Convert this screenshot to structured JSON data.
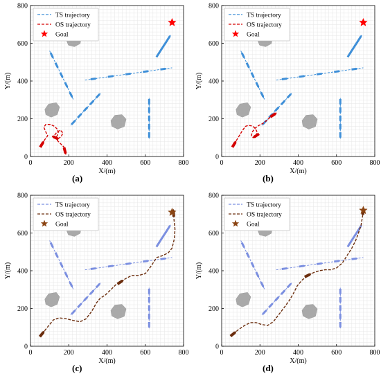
{
  "figure": {
    "captions": [
      "(a)",
      "(b)",
      "(c)",
      "(d)"
    ]
  },
  "chart_data": [
    {
      "type": "line",
      "panel": "(a)",
      "xlabel": "X/(m)",
      "ylabel": "Y/(m)",
      "xlim": [
        0,
        800
      ],
      "ylim": [
        0,
        800
      ],
      "xticks": [
        "0",
        "200",
        "400",
        "600",
        "800"
      ],
      "yticks": [
        "0",
        "200",
        "400",
        "600",
        "800"
      ],
      "grid": true,
      "legend_position": "top-left",
      "legend": [
        "TS  trajectory",
        "OS  trajectory",
        "Goal"
      ],
      "goal": {
        "x": 740,
        "y": 710,
        "color": "#ff0000"
      },
      "ts_color": "#3e8fd8",
      "os_color": "#d40000",
      "obstacles": [
        [
          [
            190,
            610
          ],
          [
            205,
            640
          ],
          [
            245,
            648
          ],
          [
            265,
            630
          ],
          [
            260,
            598
          ],
          [
            230,
            582
          ],
          [
            198,
            590
          ]
        ],
        [
          [
            75,
            250
          ],
          [
            95,
            278
          ],
          [
            135,
            285
          ],
          [
            152,
            262
          ],
          [
            140,
            222
          ],
          [
            108,
            208
          ],
          [
            80,
            222
          ]
        ],
        [
          [
            420,
            190
          ],
          [
            440,
            218
          ],
          [
            478,
            222
          ],
          [
            500,
            198
          ],
          [
            490,
            158
          ],
          [
            455,
            145
          ],
          [
            425,
            160
          ]
        ]
      ],
      "ts_lines": [
        {
          "x": [
            100,
            225
          ],
          "y": [
            560,
            300
          ]
        },
        {
          "x": [
            285,
            740
          ],
          "y": [
            405,
            470
          ]
        },
        {
          "x": [
            210,
            370
          ],
          "y": [
            165,
            340
          ]
        },
        {
          "x": [
            620,
            620
          ],
          "y": [
            310,
            90
          ]
        },
        {
          "x": [
            660,
            730
          ],
          "y": [
            530,
            640
          ]
        }
      ],
      "series": [
        {
          "name": "OS  trajectory",
          "color": "#d40000",
          "x": [
            60,
            75,
            90,
            80,
            70,
            80,
            105,
            125,
            140,
            145,
            140,
            130,
            120,
            135,
            155,
            170,
            160,
            145,
            140,
            155,
            175,
            180
          ],
          "y": [
            65,
            90,
            110,
            130,
            155,
            170,
            170,
            160,
            145,
            128,
            110,
            100,
            105,
            125,
            140,
            125,
            105,
            95,
            85,
            70,
            50,
            30
          ]
        }
      ]
    },
    {
      "type": "line",
      "panel": "(b)",
      "xlabel": "X/(m)",
      "ylabel": "Y/(m)",
      "xlim": [
        0,
        800
      ],
      "ylim": [
        0,
        800
      ],
      "xticks": [
        "0",
        "200",
        "400",
        "600",
        "800"
      ],
      "yticks": [
        "0",
        "200",
        "400",
        "600",
        "800"
      ],
      "grid": true,
      "legend_position": "top-left",
      "legend": [
        "TS  trajectory",
        "OS  trajectory",
        "Goal"
      ],
      "goal": {
        "x": 740,
        "y": 710,
        "color": "#ff0000"
      },
      "ts_color": "#3e8fd8",
      "os_color": "#d40000",
      "obstacles": [
        [
          [
            190,
            610
          ],
          [
            205,
            640
          ],
          [
            245,
            648
          ],
          [
            265,
            630
          ],
          [
            260,
            598
          ],
          [
            230,
            582
          ],
          [
            198,
            590
          ]
        ],
        [
          [
            75,
            250
          ],
          [
            95,
            278
          ],
          [
            135,
            285
          ],
          [
            152,
            262
          ],
          [
            140,
            222
          ],
          [
            108,
            208
          ],
          [
            80,
            222
          ]
        ],
        [
          [
            420,
            190
          ],
          [
            440,
            218
          ],
          [
            478,
            222
          ],
          [
            500,
            198
          ],
          [
            490,
            158
          ],
          [
            455,
            145
          ],
          [
            425,
            160
          ]
        ]
      ],
      "ts_lines": [
        {
          "x": [
            100,
            225
          ],
          "y": [
            560,
            300
          ]
        },
        {
          "x": [
            285,
            740
          ],
          "y": [
            405,
            470
          ]
        },
        {
          "x": [
            210,
            370
          ],
          "y": [
            165,
            340
          ]
        },
        {
          "x": [
            620,
            620
          ],
          "y": [
            310,
            90
          ]
        },
        {
          "x": [
            660,
            730
          ],
          "y": [
            530,
            640
          ]
        }
      ],
      "series": [
        {
          "name": "OS  trajectory",
          "color": "#d40000",
          "x": [
            65,
            80,
            95,
            110,
            125,
            140,
            160,
            175,
            185,
            180,
            165,
            155,
            160,
            175,
            195,
            215,
            235,
            255,
            270
          ],
          "y": [
            65,
            90,
            115,
            140,
            160,
            165,
            162,
            150,
            130,
            110,
            100,
            110,
            130,
            150,
            165,
            175,
            190,
            210,
            220
          ]
        }
      ]
    },
    {
      "type": "line",
      "panel": "(c)",
      "xlabel": "X/(m)",
      "ylabel": "Y/(m)",
      "xlim": [
        0,
        800
      ],
      "ylim": [
        0,
        800
      ],
      "xticks": [
        "0",
        "200",
        "400",
        "600",
        "800"
      ],
      "yticks": [
        "0",
        "200",
        "400",
        "600",
        "800"
      ],
      "grid": true,
      "legend_position": "top-left",
      "legend": [
        "TS  trajectory",
        "OS  trajectory",
        "Goal"
      ],
      "goal": {
        "x": 740,
        "y": 710,
        "color": "#8b4513"
      },
      "ts_color": "#7b8fe0",
      "os_color": "#6b2d0d",
      "obstacles": [
        [
          [
            190,
            610
          ],
          [
            205,
            640
          ],
          [
            245,
            648
          ],
          [
            265,
            630
          ],
          [
            260,
            598
          ],
          [
            230,
            582
          ],
          [
            198,
            590
          ]
        ],
        [
          [
            75,
            250
          ],
          [
            95,
            278
          ],
          [
            135,
            285
          ],
          [
            152,
            262
          ],
          [
            140,
            222
          ],
          [
            108,
            208
          ],
          [
            80,
            222
          ]
        ],
        [
          [
            420,
            190
          ],
          [
            440,
            218
          ],
          [
            478,
            222
          ],
          [
            500,
            198
          ],
          [
            490,
            158
          ],
          [
            455,
            145
          ],
          [
            425,
            160
          ]
        ]
      ],
      "ts_lines": [
        {
          "x": [
            100,
            225
          ],
          "y": [
            560,
            300
          ]
        },
        {
          "x": [
            285,
            740
          ],
          "y": [
            405,
            470
          ]
        },
        {
          "x": [
            210,
            370
          ],
          "y": [
            165,
            340
          ]
        },
        {
          "x": [
            620,
            620
          ],
          "y": [
            310,
            90
          ]
        },
        {
          "x": [
            660,
            730
          ],
          "y": [
            530,
            640
          ]
        }
      ],
      "series": [
        {
          "name": "OS  trajectory",
          "color": "#6b2d0d",
          "x": [
            60,
            80,
            100,
            120,
            150,
            190,
            230,
            260,
            290,
            320,
            345,
            365,
            390,
            420,
            445,
            470,
            500,
            530,
            565,
            600,
            620,
            640,
            660,
            690,
            720,
            740,
            752,
            755,
            750,
            748
          ],
          "y": [
            65,
            90,
            115,
            140,
            150,
            145,
            135,
            130,
            145,
            185,
            230,
            255,
            270,
            300,
            325,
            340,
            360,
            375,
            375,
            385,
            410,
            440,
            470,
            480,
            495,
            520,
            570,
            620,
            670,
            705
          ]
        }
      ]
    },
    {
      "type": "line",
      "panel": "(d)",
      "xlabel": "X/(m)",
      "ylabel": "Y/(m)",
      "xlim": [
        0,
        800
      ],
      "ylim": [
        0,
        800
      ],
      "xticks": [
        "0",
        "200",
        "400",
        "600",
        "800"
      ],
      "yticks": [
        "0",
        "200",
        "400",
        "600",
        "800"
      ],
      "grid": true,
      "legend_position": "top-left",
      "legend": [
        "TS  trajectory",
        "OS  trajectory",
        "Goal"
      ],
      "goal": {
        "x": 740,
        "y": 720,
        "color": "#8b4513"
      },
      "ts_color": "#7b8fe0",
      "os_color": "#6b2d0d",
      "obstacles": [
        [
          [
            190,
            610
          ],
          [
            205,
            640
          ],
          [
            245,
            648
          ],
          [
            265,
            630
          ],
          [
            260,
            598
          ],
          [
            230,
            582
          ],
          [
            198,
            590
          ]
        ],
        [
          [
            75,
            250
          ],
          [
            95,
            278
          ],
          [
            135,
            285
          ],
          [
            152,
            262
          ],
          [
            140,
            222
          ],
          [
            108,
            208
          ],
          [
            80,
            222
          ]
        ],
        [
          [
            420,
            190
          ],
          [
            440,
            218
          ],
          [
            478,
            222
          ],
          [
            500,
            198
          ],
          [
            490,
            158
          ],
          [
            455,
            145
          ],
          [
            425,
            160
          ]
        ]
      ],
      "ts_lines": [
        {
          "x": [
            100,
            225
          ],
          "y": [
            560,
            300
          ]
        },
        {
          "x": [
            285,
            740
          ],
          "y": [
            405,
            470
          ]
        },
        {
          "x": [
            210,
            370
          ],
          "y": [
            165,
            340
          ]
        },
        {
          "x": [
            620,
            620
          ],
          "y": [
            310,
            90
          ]
        },
        {
          "x": [
            660,
            730
          ],
          "y": [
            530,
            640
          ]
        }
      ],
      "series": [
        {
          "name": "OS  trajectory",
          "color": "#6b2d0d",
          "x": [
            60,
            90,
            120,
            150,
            180,
            210,
            240,
            270,
            300,
            330,
            355,
            375,
            395,
            420,
            450,
            480,
            510,
            540,
            570,
            600,
            630,
            655,
            680,
            700,
            715,
            728,
            735,
            740
          ],
          "y": [
            65,
            90,
            110,
            125,
            125,
            115,
            110,
            130,
            170,
            210,
            245,
            280,
            320,
            350,
            375,
            390,
            400,
            405,
            405,
            415,
            440,
            480,
            520,
            560,
            600,
            640,
            680,
            715
          ]
        }
      ]
    }
  ]
}
